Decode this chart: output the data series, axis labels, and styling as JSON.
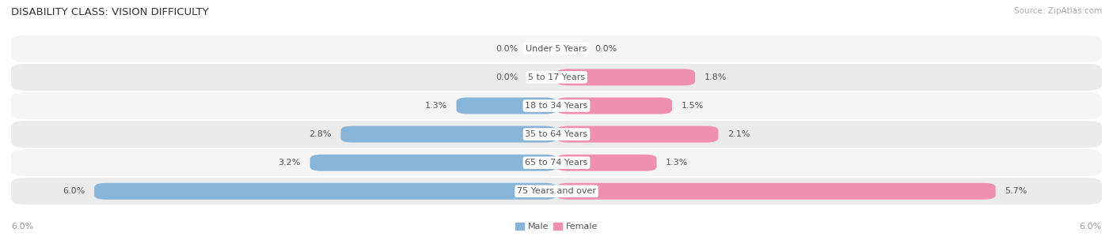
{
  "title": "DISABILITY CLASS: VISION DIFFICULTY",
  "source": "Source: ZipAtlas.com",
  "categories": [
    "Under 5 Years",
    "5 to 17 Years",
    "18 to 34 Years",
    "35 to 64 Years",
    "65 to 74 Years",
    "75 Years and over"
  ],
  "male_values": [
    0.0,
    0.0,
    1.3,
    2.8,
    3.2,
    6.0
  ],
  "female_values": [
    0.0,
    1.8,
    1.5,
    2.1,
    1.3,
    5.7
  ],
  "male_color": "#88b4d8",
  "female_color": "#f090b0",
  "row_bg_even": "#f5f5f5",
  "row_bg_odd": "#ebebeb",
  "max_val": 6.0,
  "title_fontsize": 9.5,
  "label_fontsize": 8.0,
  "value_fontsize": 8.0,
  "tick_fontsize": 8.0,
  "source_fontsize": 7.5,
  "text_color": "#555555",
  "axis_label_color": "#999999",
  "title_color": "#333333"
}
